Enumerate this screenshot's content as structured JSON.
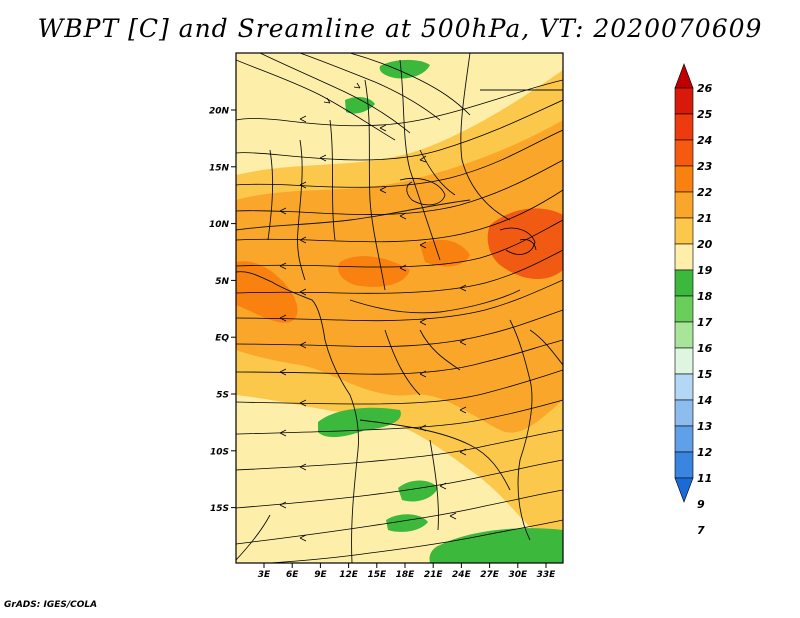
{
  "title": "WBPT [C] and Sreamline at 500hPa, VT: 2020070609",
  "credit": "GrADS: IGES/COLA",
  "lat_labels": [
    "20N",
    "15N",
    "10N",
    "5N",
    "EQ",
    "5S",
    "10S",
    "15S"
  ],
  "lon_labels": [
    "3E",
    "6E",
    "9E",
    "12E",
    "15E",
    "18E",
    "21E",
    "24E",
    "27E",
    "30E",
    "33E"
  ],
  "colorbar": {
    "labels": [
      "26",
      "25",
      "24",
      "23",
      "22",
      "21",
      "20",
      "19",
      "18",
      "17",
      "16",
      "15",
      "14",
      "13",
      "12",
      "11",
      "9",
      "7"
    ],
    "colors": [
      "#c00000",
      "#d81a0a",
      "#ee3a0f",
      "#f55a10",
      "#f88110",
      "#faa62a",
      "#fbc84c",
      "#fdeeaa",
      "#3cb83c",
      "#6acf5a",
      "#a8e49a",
      "#def5e0",
      "#b4d7f5",
      "#8dbcef",
      "#5fa0e8",
      "#3a85e0",
      "#1a6ad8"
    ]
  },
  "colors": {
    "background_field": "#fdeeaa",
    "warm_field": "#fbc84c",
    "hot_field": "#faa62a",
    "hottest_field": "#f88110",
    "moist_low": "#3cb83c",
    "coastline": "#111111"
  }
}
